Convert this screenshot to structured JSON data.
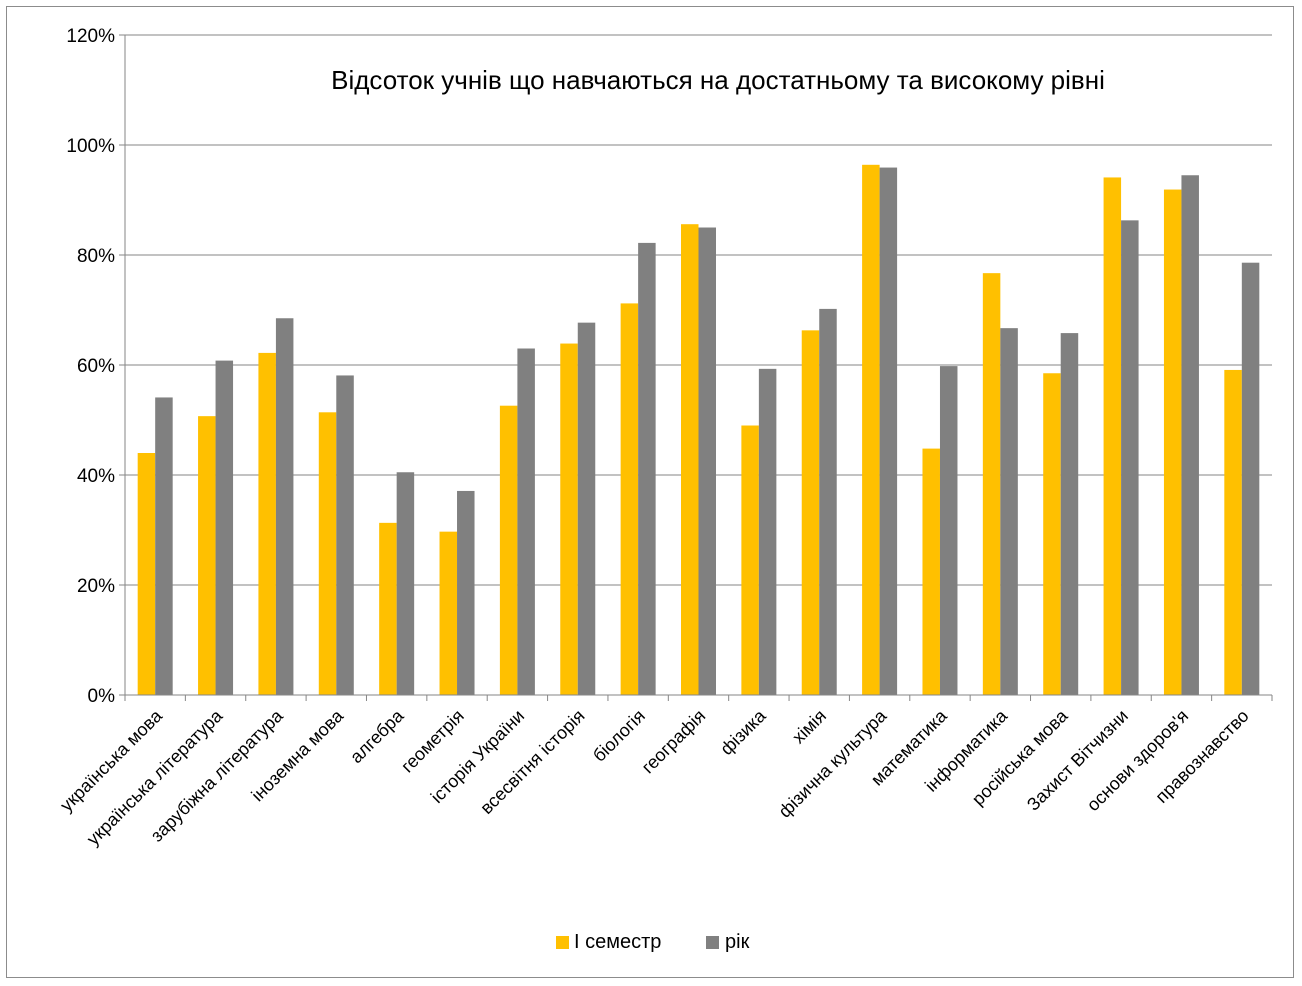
{
  "chart_data": {
    "type": "bar",
    "title": "Відсоток учнів що навчаються на достатньому та високому рівні",
    "xlabel": "",
    "ylabel": "",
    "ylim": [
      0,
      120
    ],
    "y_ticks": [
      "0%",
      "20%",
      "40%",
      "60%",
      "80%",
      "100%",
      "120%"
    ],
    "grid": true,
    "legend_position": "bottom",
    "categories": [
      "українська мова",
      "українська література",
      "зарубіжна література",
      "іноземна мова",
      "алгебра",
      "геометрія",
      "історія України",
      "всесвітня історія",
      "біологія",
      "географія",
      "фізика",
      "хімія",
      "фізична культура",
      "математика",
      "інформатика",
      "російська мова",
      "Захист Вітчизни",
      "основи здоров'я",
      "правознавство"
    ],
    "series": [
      {
        "name": "І семестр",
        "color": "#FFC000",
        "values": [
          44,
          50.7,
          62.2,
          51.4,
          31.3,
          29.7,
          52.6,
          63.9,
          71.2,
          85.6,
          49,
          66.3,
          96.4,
          44.8,
          76.7,
          58.5,
          94.1,
          91.9,
          59.1
        ]
      },
      {
        "name": "рік",
        "color": "#808080",
        "values": [
          54.1,
          60.8,
          68.5,
          58.1,
          40.5,
          37.1,
          63,
          67.7,
          82.2,
          85,
          59.3,
          70.2,
          95.9,
          59.8,
          66.7,
          65.8,
          86.3,
          94.5,
          78.6
        ]
      }
    ]
  }
}
